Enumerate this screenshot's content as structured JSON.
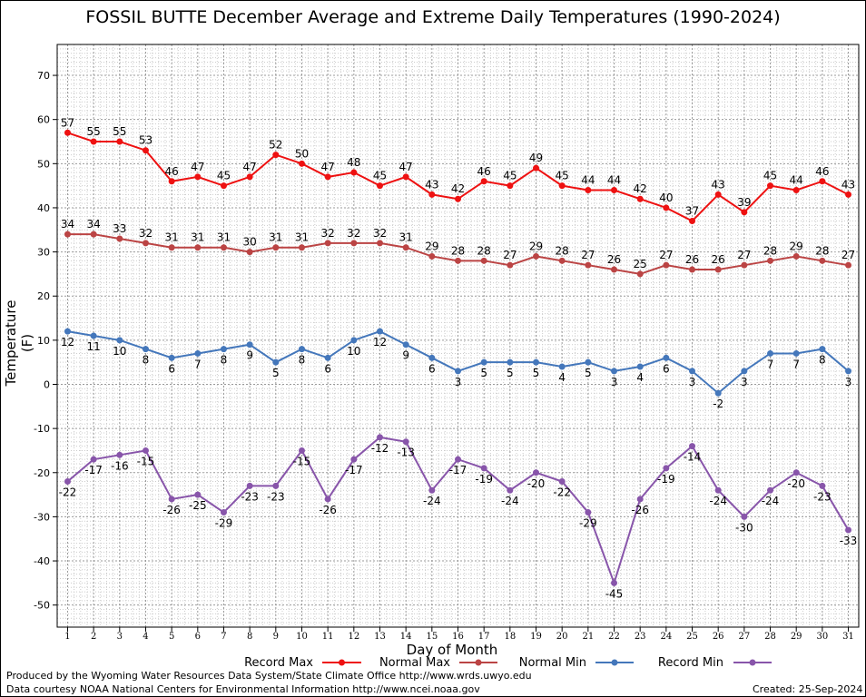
{
  "chart_data": {
    "type": "line",
    "title": "FOSSIL BUTTE December Average and Extreme Daily Temperatures (1990-2024)",
    "xlabel": "Day of Month",
    "ylabel": "Temperature (F)",
    "ylim": [
      -55,
      77
    ],
    "xlim": [
      0.6,
      31.4
    ],
    "yticks": [
      -50,
      -40,
      -30,
      -20,
      -10,
      0,
      10,
      20,
      30,
      40,
      50,
      60,
      70
    ],
    "x": [
      1,
      2,
      3,
      4,
      5,
      6,
      7,
      8,
      9,
      10,
      11,
      12,
      13,
      14,
      15,
      16,
      17,
      18,
      19,
      20,
      21,
      22,
      23,
      24,
      25,
      26,
      27,
      28,
      29,
      30,
      31
    ],
    "grid": true,
    "legend_position": "bottom",
    "series": [
      {
        "name": "Record Max",
        "color": "#ee1111",
        "label_pos": "above",
        "values": [
          57,
          55,
          55,
          53,
          46,
          47,
          45,
          47,
          52,
          50,
          47,
          48,
          45,
          47,
          43,
          42,
          46,
          45,
          49,
          45,
          44,
          44,
          42,
          40,
          37,
          43,
          39,
          45,
          44,
          46,
          43
        ]
      },
      {
        "name": "Normal Max",
        "color": "#bb4444",
        "label_pos": "above",
        "values": [
          34,
          34,
          33,
          32,
          31,
          31,
          31,
          30,
          31,
          31,
          32,
          32,
          32,
          31,
          29,
          28,
          28,
          27,
          29,
          28,
          27,
          26,
          25,
          27,
          26,
          26,
          27,
          28,
          29,
          28,
          27
        ]
      },
      {
        "name": "Normal Min",
        "color": "#4477bb",
        "label_pos": "below",
        "values": [
          12,
          11,
          10,
          8,
          6,
          7,
          8,
          9,
          5,
          8,
          6,
          10,
          12,
          9,
          6,
          3,
          5,
          5,
          5,
          4,
          5,
          3,
          4,
          6,
          3,
          -2,
          3,
          7,
          7,
          8,
          3
        ]
      },
      {
        "name": "Record Min",
        "color": "#8855aa",
        "label_pos": "below",
        "values": [
          -22,
          -17,
          -16,
          -15,
          -26,
          -25,
          -29,
          -23,
          -23,
          -15,
          -26,
          -17,
          -12,
          -13,
          -24,
          -17,
          -19,
          -24,
          -20,
          -22,
          -29,
          -45,
          -26,
          -19,
          -14,
          -24,
          -30,
          -24,
          -20,
          -23,
          -33
        ]
      }
    ]
  },
  "footer": {
    "credit_line1": "Produced by the Wyoming Water Resources Data System/State Climate Office http://www.wrds.uwyo.edu",
    "credit_line2": "Data courtesy NOAA National Centers for Environmental Information http://www.ncei.noaa.gov",
    "created": "Created:  25-Sep-2024"
  }
}
